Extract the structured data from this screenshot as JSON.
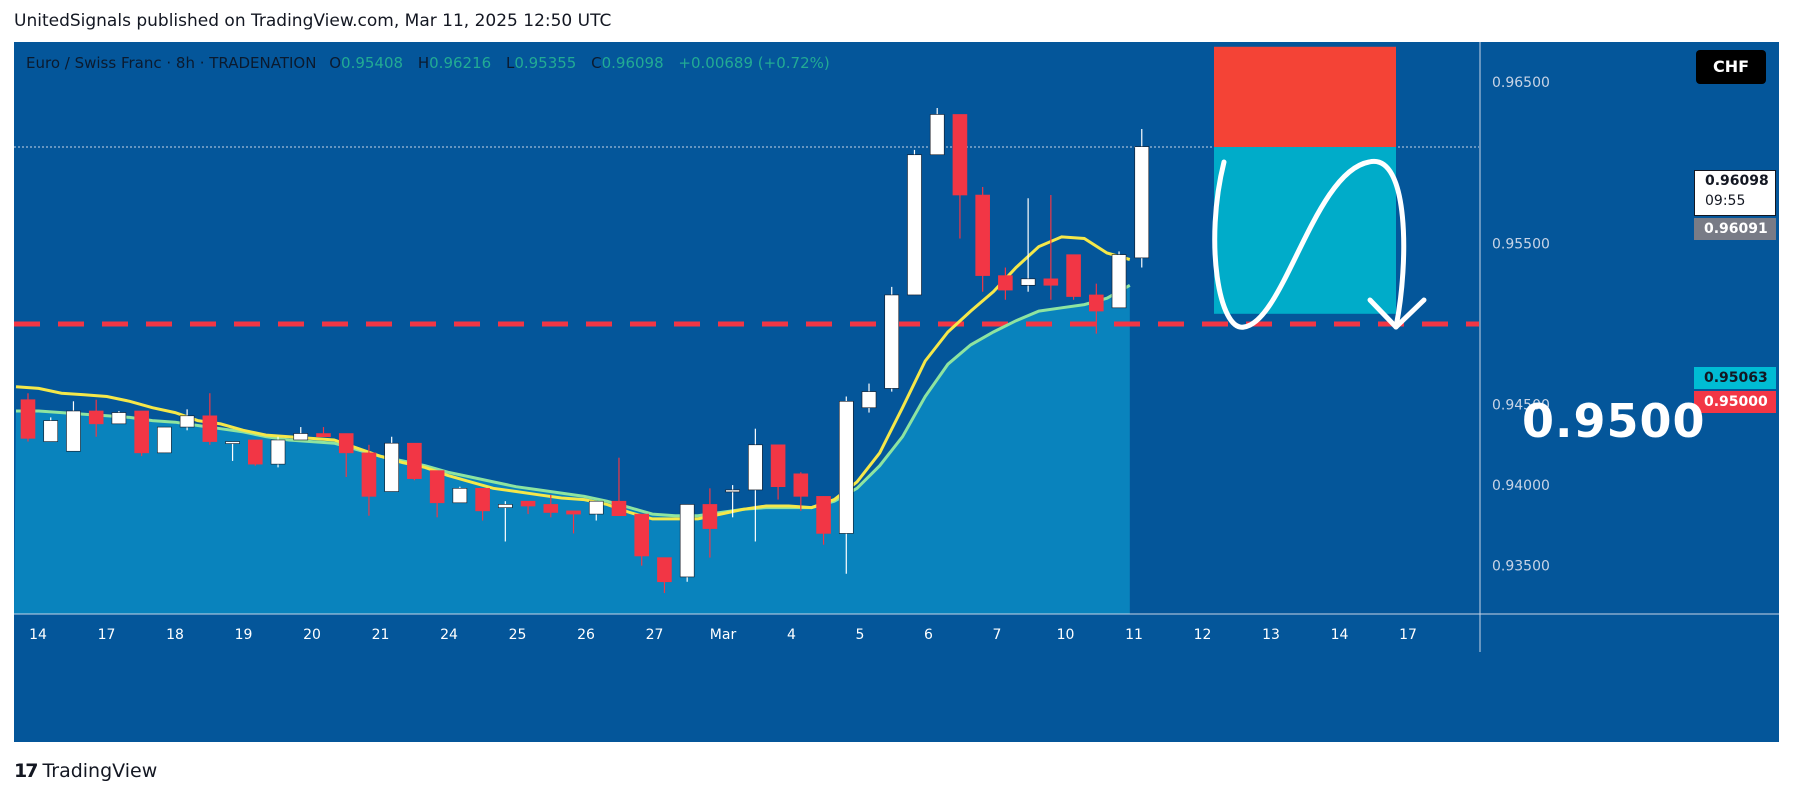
{
  "header": {
    "publisher_line": "UnitedSignals published on TradingView.com, Mar 11, 2025 12:50 UTC"
  },
  "legend": {
    "symbol": "Euro / Swiss Franc · 8h · TRADENATION",
    "o_label": "O",
    "o": "0.95408",
    "h_label": "H",
    "h": "0.96216",
    "l_label": "L",
    "l": "0.95355",
    "c_label": "C",
    "c": "0.96098",
    "change": "+0.00689 (+0.72%)"
  },
  "currency": "CHF",
  "price_tags": {
    "current": "0.96098",
    "countdown": "09:55",
    "sma": "0.96091",
    "cyan": "0.95063",
    "red": "0.95000"
  },
  "annotation_text": "0.9500",
  "footer": {
    "brand": "TradingView",
    "logo": "17"
  },
  "colors": {
    "background": "#04569a",
    "up_candle": "#ffffff",
    "down_candle": "#f23645",
    "yellow_line": "#f5e84a",
    "green_line": "#8ee4a0",
    "area_fill": "#0a86bf",
    "stop_zone": "#f44336",
    "target_zone": "#00acc9",
    "dashed_level": "#f23645"
  },
  "chart_data": {
    "type": "candlestick",
    "timeframe": "8h",
    "y_axis": {
      "min": 0.932,
      "max": 0.967,
      "ticks": [
        "0.93500",
        "0.94000",
        "0.94500",
        "0.95500",
        "0.96500"
      ],
      "side": "right"
    },
    "x_labels": [
      "14",
      "17",
      "18",
      "19",
      "20",
      "21",
      "24",
      "25",
      "26",
      "27",
      "Mar",
      "4",
      "5",
      "6",
      "7",
      "10",
      "11",
      "12",
      "13",
      "14",
      "17"
    ],
    "level": 0.95,
    "current_price": 0.96098,
    "candles": [
      {
        "o": 0.9453,
        "h": 0.9457,
        "l": 0.9427,
        "c": 0.9429
      },
      {
        "o": 0.9427,
        "h": 0.9442,
        "l": 0.9427,
        "c": 0.944
      },
      {
        "o": 0.9421,
        "h": 0.9452,
        "l": 0.9421,
        "c": 0.9446
      },
      {
        "o": 0.9446,
        "h": 0.9453,
        "l": 0.943,
        "c": 0.9438
      },
      {
        "o": 0.9438,
        "h": 0.9446,
        "l": 0.9438,
        "c": 0.9445
      },
      {
        "o": 0.9446,
        "h": 0.9446,
        "l": 0.9418,
        "c": 0.942
      },
      {
        "o": 0.942,
        "h": 0.9436,
        "l": 0.942,
        "c": 0.9436
      },
      {
        "o": 0.9436,
        "h": 0.9447,
        "l": 0.9434,
        "c": 0.9443
      },
      {
        "o": 0.9443,
        "h": 0.9457,
        "l": 0.9425,
        "c": 0.9427
      },
      {
        "o": 0.9427,
        "h": 0.9427,
        "l": 0.9415,
        "c": 0.9427
      },
      {
        "o": 0.9428,
        "h": 0.9428,
        "l": 0.9412,
        "c": 0.9413
      },
      {
        "o": 0.9413,
        "h": 0.943,
        "l": 0.9411,
        "c": 0.9428
      },
      {
        "o": 0.9428,
        "h": 0.9436,
        "l": 0.9428,
        "c": 0.9432
      },
      {
        "o": 0.9432,
        "h": 0.9436,
        "l": 0.943,
        "c": 0.943
      },
      {
        "o": 0.9432,
        "h": 0.9432,
        "l": 0.9405,
        "c": 0.942
      },
      {
        "o": 0.942,
        "h": 0.9425,
        "l": 0.9381,
        "c": 0.9393
      },
      {
        "o": 0.9396,
        "h": 0.943,
        "l": 0.9396,
        "c": 0.9426
      },
      {
        "o": 0.9426,
        "h": 0.9426,
        "l": 0.9403,
        "c": 0.9404
      },
      {
        "o": 0.9409,
        "h": 0.9409,
        "l": 0.938,
        "c": 0.9389
      },
      {
        "o": 0.9389,
        "h": 0.9399,
        "l": 0.9389,
        "c": 0.9398
      },
      {
        "o": 0.9398,
        "h": 0.9398,
        "l": 0.9378,
        "c": 0.9384
      },
      {
        "o": 0.9386,
        "h": 0.939,
        "l": 0.9365,
        "c": 0.9388
      },
      {
        "o": 0.939,
        "h": 0.939,
        "l": 0.9382,
        "c": 0.9387
      },
      {
        "o": 0.9388,
        "h": 0.9394,
        "l": 0.938,
        "c": 0.9383
      },
      {
        "o": 0.9384,
        "h": 0.9384,
        "l": 0.937,
        "c": 0.9382
      },
      {
        "o": 0.9382,
        "h": 0.939,
        "l": 0.9378,
        "c": 0.939
      },
      {
        "o": 0.939,
        "h": 0.9417,
        "l": 0.9381,
        "c": 0.9381
      },
      {
        "o": 0.9382,
        "h": 0.9382,
        "l": 0.935,
        "c": 0.9356
      },
      {
        "o": 0.9355,
        "h": 0.9355,
        "l": 0.9333,
        "c": 0.934
      },
      {
        "o": 0.9343,
        "h": 0.9388,
        "l": 0.934,
        "c": 0.9388
      },
      {
        "o": 0.9388,
        "h": 0.9398,
        "l": 0.9355,
        "c": 0.9373
      },
      {
        "o": 0.9397,
        "h": 0.94,
        "l": 0.938,
        "c": 0.9397
      },
      {
        "o": 0.9397,
        "h": 0.9435,
        "l": 0.9365,
        "c": 0.9425
      },
      {
        "o": 0.9425,
        "h": 0.9425,
        "l": 0.9391,
        "c": 0.9399
      },
      {
        "o": 0.9407,
        "h": 0.9408,
        "l": 0.9384,
        "c": 0.9393
      },
      {
        "o": 0.9393,
        "h": 0.9393,
        "l": 0.9363,
        "c": 0.937
      },
      {
        "o": 0.937,
        "h": 0.9455,
        "l": 0.9345,
        "c": 0.9452
      },
      {
        "o": 0.9448,
        "h": 0.9463,
        "l": 0.9445,
        "c": 0.9458
      },
      {
        "o": 0.946,
        "h": 0.9523,
        "l": 0.9458,
        "c": 0.9518
      },
      {
        "o": 0.9518,
        "h": 0.9608,
        "l": 0.9518,
        "c": 0.9605
      },
      {
        "o": 0.9605,
        "h": 0.9634,
        "l": 0.9605,
        "c": 0.963
      },
      {
        "o": 0.963,
        "h": 0.963,
        "l": 0.9553,
        "c": 0.958
      },
      {
        "o": 0.958,
        "h": 0.9585,
        "l": 0.952,
        "c": 0.953
      },
      {
        "o": 0.953,
        "h": 0.9535,
        "l": 0.9515,
        "c": 0.9521
      },
      {
        "o": 0.9524,
        "h": 0.9578,
        "l": 0.952,
        "c": 0.9528
      },
      {
        "o": 0.9528,
        "h": 0.958,
        "l": 0.9515,
        "c": 0.9524
      },
      {
        "o": 0.9543,
        "h": 0.9543,
        "l": 0.9515,
        "c": 0.9517
      },
      {
        "o": 0.9518,
        "h": 0.9525,
        "l": 0.9494,
        "c": 0.9508
      },
      {
        "o": 0.951,
        "h": 0.9545,
        "l": 0.951,
        "c": 0.9543
      },
      {
        "o": 0.9541,
        "h": 0.9621,
        "l": 0.9535,
        "c": 0.961
      }
    ],
    "yellow_ma": [
      0.9461,
      0.946,
      0.9457,
      0.9456,
      0.9455,
      0.9452,
      0.9448,
      0.9445,
      0.944,
      0.9438,
      0.9434,
      0.9431,
      0.943,
      0.9429,
      0.9428,
      0.9423,
      0.9418,
      0.9414,
      0.9411,
      0.9406,
      0.9402,
      0.9398,
      0.9396,
      0.9394,
      0.9392,
      0.9391,
      0.9388,
      0.9383,
      0.9379,
      0.9379,
      0.9379,
      0.9382,
      0.9385,
      0.9387,
      0.9387,
      0.9386,
      0.9391,
      0.9402,
      0.942,
      0.9448,
      0.9477,
      0.9495,
      0.9508,
      0.952,
      0.9535,
      0.9548,
      0.9554,
      0.9553,
      0.9544,
      0.954
    ],
    "green_ma": [
      0.9446,
      0.9446,
      0.9445,
      0.9444,
      0.9443,
      0.9442,
      0.944,
      0.9439,
      0.9437,
      0.9435,
      0.9433,
      0.943,
      0.9428,
      0.9427,
      0.9426,
      0.9422,
      0.9418,
      0.9415,
      0.9412,
      0.9408,
      0.9405,
      0.9402,
      0.9399,
      0.9397,
      0.9395,
      0.9393,
      0.939,
      0.9386,
      0.9382,
      0.9381,
      0.9381,
      0.9383,
      0.9385,
      0.9386,
      0.9386,
      0.9386,
      0.939,
      0.9398,
      0.9412,
      0.943,
      0.9455,
      0.9475,
      0.9487,
      0.9495,
      0.9502,
      0.9508,
      0.951,
      0.9512,
      0.9516,
      0.9524
    ],
    "short_position": {
      "entry": 0.96098,
      "stop": 0.9672,
      "target": 0.95063
    }
  }
}
